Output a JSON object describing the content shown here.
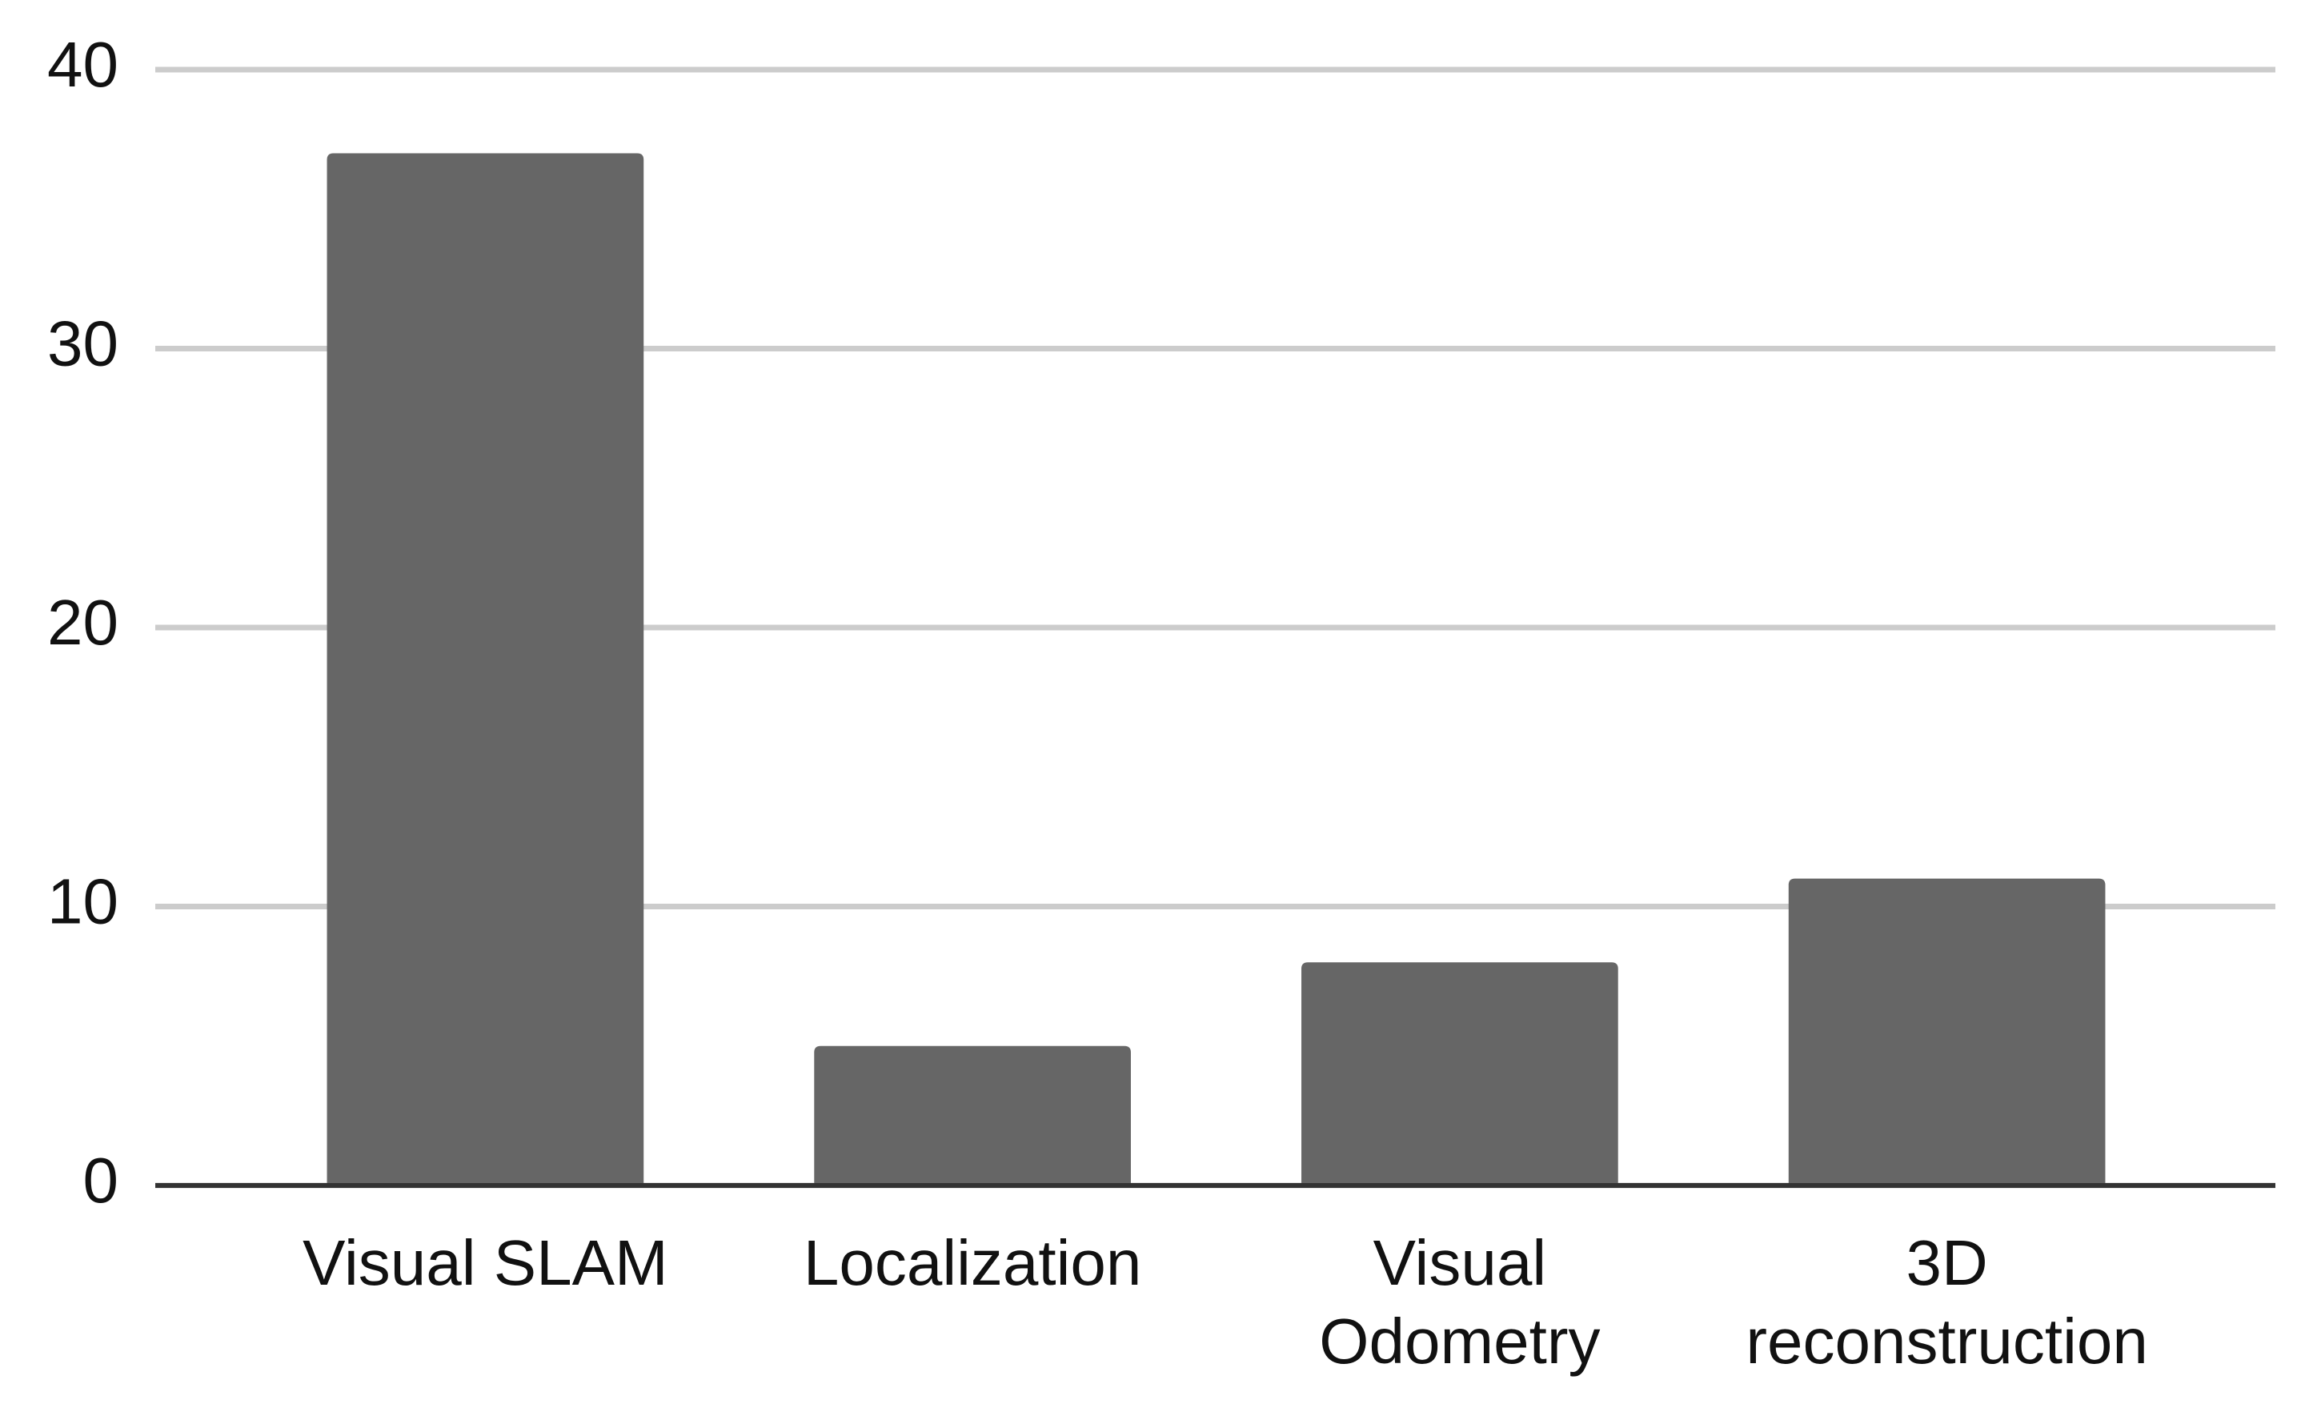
{
  "chart_data": {
    "type": "bar",
    "categories": [
      "Visual SLAM",
      "Localization",
      "Visual\nOdometry",
      "3D\nreconstruction"
    ],
    "values": [
      37,
      5,
      8,
      11
    ],
    "color": "#666666",
    "ylim": [
      0,
      40
    ],
    "yticks": [
      0,
      10,
      20,
      30,
      40
    ],
    "grid": true
  }
}
